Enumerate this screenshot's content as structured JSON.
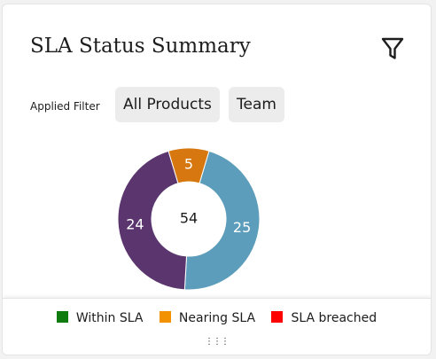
{
  "card": {
    "title": "SLA Status Summary",
    "filter_icon": "filter-funnel-icon"
  },
  "filters": {
    "label": "Applied Filter",
    "chips": [
      "All Products",
      "Team"
    ]
  },
  "legend": {
    "items": [
      {
        "label": "Within SLA",
        "color": "#107c10"
      },
      {
        "label": "Nearing SLA",
        "color": "#f39200"
      },
      {
        "label": "SLA breached",
        "color": "#ff0000"
      }
    ],
    "drag_handle": "⋮⋮⋮"
  },
  "chart_data": {
    "type": "pie",
    "hole": true,
    "center_label": "54",
    "series": [
      {
        "value": 25,
        "label": "25",
        "color": "#5b9dba"
      },
      {
        "value": 24,
        "label": "24",
        "color": "#5a356e"
      },
      {
        "value": 5,
        "label": "5",
        "color": "#d6780f"
      }
    ]
  }
}
